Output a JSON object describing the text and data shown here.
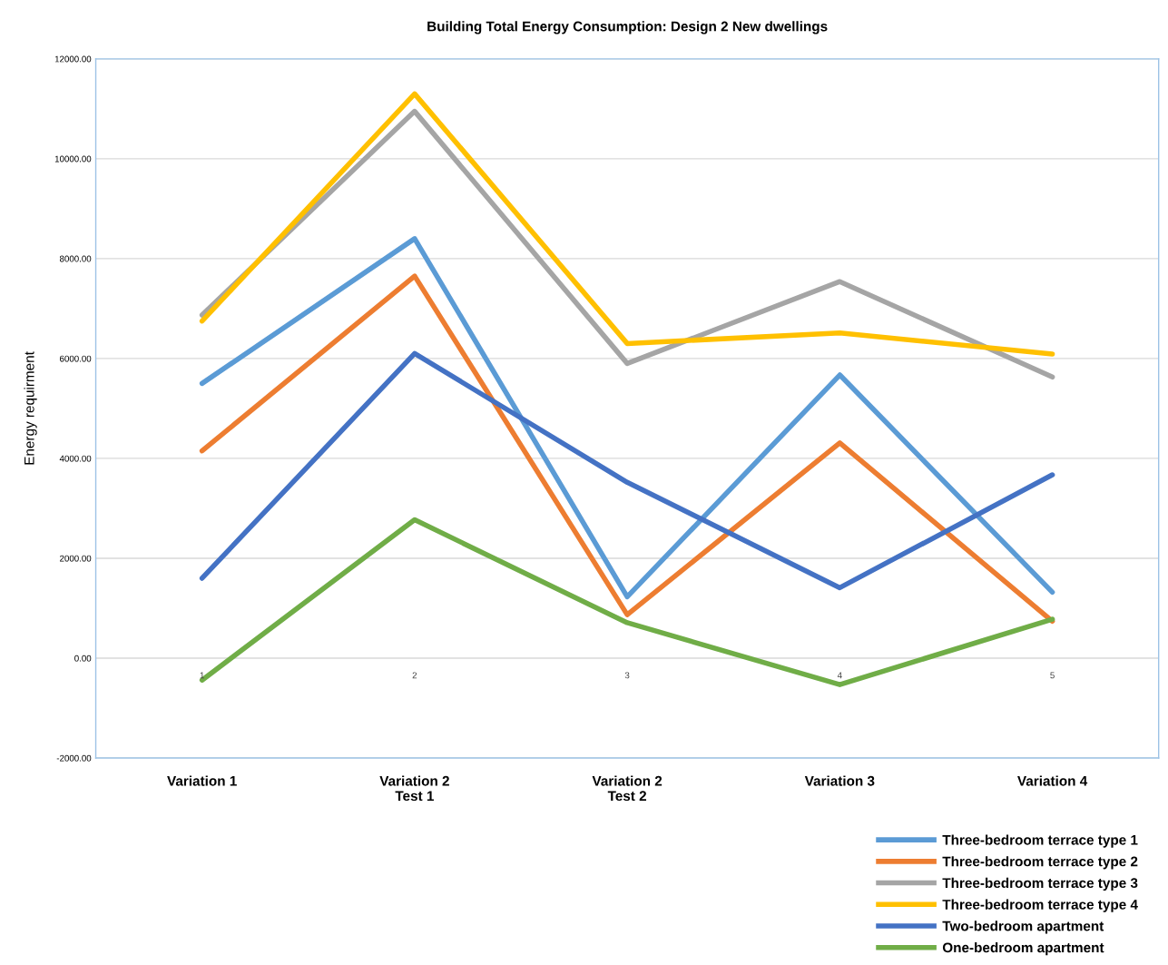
{
  "chart_data": {
    "type": "line",
    "title": "Building Total Energy Consumption: Design 2 New dwellings",
    "ylabel": "Energy requirment",
    "categories": [
      "Variation 1",
      "Variation 2\nTest 1",
      "Variation 2\nTest 2",
      "Variation 3",
      "Variation 4"
    ],
    "series": [
      {
        "name": "Three-bedroom terrace type 1",
        "color": "#5b9bd5",
        "values": [
          5500,
          8400,
          1230,
          5670,
          1320
        ]
      },
      {
        "name": "Three-bedroom terrace type 2",
        "color": "#ed7d31",
        "values": [
          4150,
          7650,
          870,
          4310,
          740
        ]
      },
      {
        "name": "Three-bedroom terrace type 3",
        "color": "#a5a5a5",
        "values": [
          6870,
          10950,
          5900,
          7540,
          5630
        ]
      },
      {
        "name": "Three-bedroom terrace type 4",
        "color": "#ffc000",
        "values": [
          6750,
          11300,
          6300,
          6510,
          6090
        ]
      },
      {
        "name": "Two-bedroom apartment",
        "color": "#4472c4",
        "values": [
          1600,
          6100,
          3520,
          1410,
          3670
        ]
      },
      {
        "name": "One-bedroom apartment",
        "color": "#70ad47",
        "values": [
          -440,
          2770,
          710,
          -530,
          780
        ]
      }
    ],
    "ylim": [
      -2000,
      12000
    ],
    "yticks": [
      {
        "value": -2000,
        "label": "-2000.00"
      },
      {
        "value": 0,
        "label": "0.00"
      },
      {
        "value": 2000,
        "label": "2000.00"
      },
      {
        "value": 4000,
        "label": "4000.00"
      },
      {
        "value": 6000,
        "label": "6000.00"
      },
      {
        "value": 8000,
        "label": "8000.00"
      },
      {
        "value": 10000,
        "label": "10000.00"
      },
      {
        "value": 12000,
        "label": "12000.00"
      }
    ],
    "annotations": [
      "1",
      "2",
      "3",
      "4",
      "5"
    ],
    "grid": "y",
    "legend": "bottom right",
    "marker": "none",
    "line_style": "solid"
  }
}
